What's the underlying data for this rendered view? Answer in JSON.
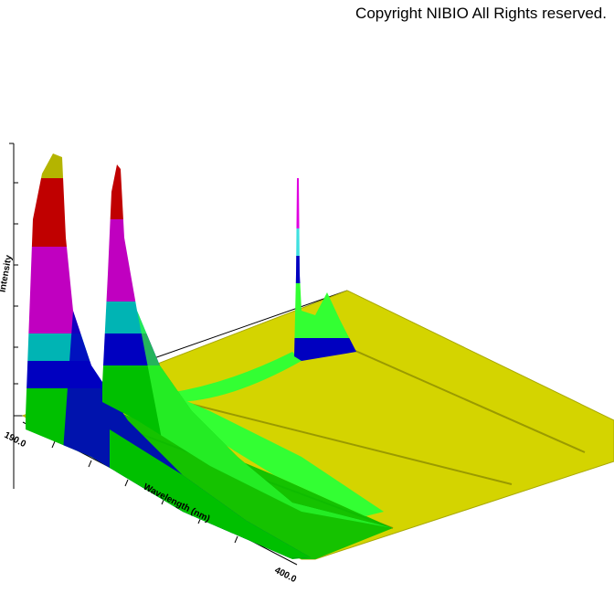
{
  "header": {
    "copyright": "Copyright NIBIO All Rights reserved."
  },
  "axes": {
    "intensity_label": "Intensity",
    "wavelength_label": "Wavelength (nm)",
    "wavelength_ticks": [
      "190.0",
      "400.0"
    ]
  }
}
